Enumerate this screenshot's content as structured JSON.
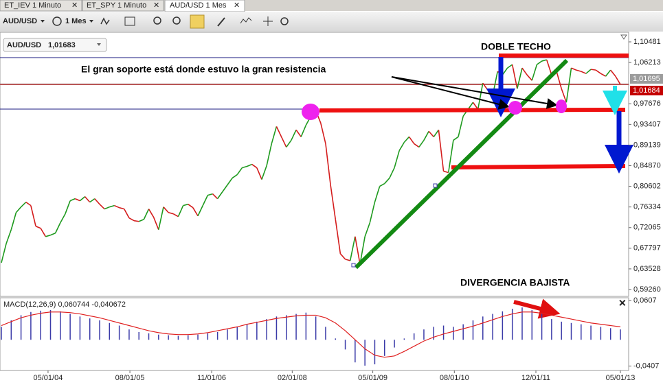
{
  "tabs": [
    "ET_IEV 1 Minuto",
    "ET_SPY 1 Minuto",
    "AUD/USD 1 Mes"
  ],
  "toolbar": {
    "symbol": "AUD/USD",
    "period": "1 Mes"
  },
  "symbol_box": {
    "symbol": "AUD/USD",
    "price": "1,01683"
  },
  "chart_data": [
    {
      "type": "line",
      "annotations": [
        "DOBLE TECHO",
        "El gran soporte está donde estuvo la gran resistencia",
        "DIVERGENCIA BAJISTA"
      ],
      "up_color": "#1e9a1e",
      "down_color": "#d41c1c",
      "values": [
        0.6481,
        0.6879,
        0.7164,
        0.7519,
        0.7633,
        0.7733,
        0.7662,
        0.7235,
        0.7192,
        0.7021,
        0.705,
        0.7093,
        0.7306,
        0.7491,
        0.7761,
        0.7804,
        0.7761,
        0.7847,
        0.7733,
        0.7804,
        0.769,
        0.7591,
        0.7633,
        0.7662,
        0.7619,
        0.7591,
        0.7406,
        0.7349,
        0.7334,
        0.7377,
        0.7591,
        0.742,
        0.7164,
        0.7633,
        0.7519,
        0.7491,
        0.7434,
        0.7662,
        0.769,
        0.7619,
        0.7448,
        0.7662,
        0.7875,
        0.7904,
        0.7804,
        0.7946,
        0.8088,
        0.8231,
        0.8302,
        0.8444,
        0.8473,
        0.8515,
        0.8444,
        0.8202,
        0.8487,
        0.8942,
        0.9298,
        0.9084,
        0.8871,
        0.9013,
        0.9227,
        0.9084,
        0.9326,
        0.9511,
        0.9625,
        0.9369,
        0.8942,
        0.8088,
        0.7377,
        0.6666,
        0.6552,
        0.6523,
        0.7021,
        0.6452,
        0.7021,
        0.7306,
        0.7733,
        0.806,
        0.8117,
        0.8231,
        0.8444,
        0.88,
        0.8971,
        0.9084,
        0.8942,
        0.8871,
        0.9013,
        0.9198,
        0.9084,
        0.9227,
        0.8373,
        0.8345,
        0.9013,
        0.9084,
        0.9511,
        0.9654,
        0.9796,
        0.9654,
        1.0194,
        1.0052,
        0.9938,
        1.0436,
        1.0365,
        1.0507,
        1.0578,
        1.008,
        1.0507,
        1.0365,
        1.0251,
        1.0578,
        1.065,
        1.0678,
        1.0365,
        1.0436,
        1.008,
        0.9796,
        1.0507,
        1.0465,
        1.0436,
        1.0393,
        1.0479,
        1.0465,
        1.0393,
        1.0337,
        1.0465,
        1.0337,
        1.0168
      ],
      "xlim": [
        0,
        126
      ],
      "ylim": [
        0.5784,
        1.1247
      ],
      "yticks": [
        {
          "value": 1.10481,
          "label": "1,10481"
        },
        {
          "value": 1.06213,
          "label": "1,06213"
        },
        {
          "value": 0.97676,
          "label": "0,97676"
        },
        {
          "value": 0.93407,
          "label": "0,93407"
        },
        {
          "value": 0.89139,
          "label": "0,89139"
        },
        {
          "value": 0.8487,
          "label": "0,84870"
        },
        {
          "value": 0.80602,
          "label": "0,80602"
        },
        {
          "value": 0.76334,
          "label": "0,76334"
        },
        {
          "value": 0.72065,
          "label": "0,72065"
        },
        {
          "value": 0.67797,
          "label": "0,67797"
        },
        {
          "value": 0.63528,
          "label": "0,63528"
        },
        {
          "value": 0.5926,
          "label": "0,59260"
        }
      ],
      "price_labels": [
        {
          "value": 1.01695,
          "label": "1,01695",
          "color": "#9c9c9c"
        },
        {
          "value": 1.01684,
          "label": "1,01684",
          "color": "#c40000"
        }
      ]
    },
    {
      "type": "macd",
      "title": "MACD(12,26,9) 0,060744 -0,040672",
      "histogram": {
        "color": "#3a3aa8",
        "values": [
          0.02,
          0.03,
          0.038,
          0.043,
          0.045,
          0.046,
          0.044,
          0.04,
          0.036,
          0.033,
          0.03,
          0.026,
          0.022,
          0.016,
          0.012,
          0.01,
          0.008,
          0.007,
          0.006,
          0.007,
          0.008,
          0.01,
          0.012,
          0.016,
          0.02,
          0.024,
          0.028,
          0.032,
          0.036,
          0.038,
          0.04,
          0.042,
          0.036,
          0.02,
          0.002,
          -0.015,
          -0.035,
          -0.04,
          -0.038,
          -0.025,
          -0.012,
          0.002,
          0.01,
          0.016,
          0.02,
          0.022,
          0.02,
          0.024,
          0.03,
          0.036,
          0.04,
          0.044,
          0.048,
          0.05,
          0.046,
          0.04,
          0.032,
          0.028,
          0.026,
          0.024,
          0.022,
          0.02,
          0.018,
          0.016
        ]
      },
      "signal": {
        "color": "#e02020",
        "values": [
          0.022,
          0.028,
          0.034,
          0.038,
          0.041,
          0.043,
          0.043,
          0.042,
          0.04,
          0.037,
          0.034,
          0.03,
          0.026,
          0.022,
          0.018,
          0.014,
          0.011,
          0.009,
          0.008,
          0.008,
          0.009,
          0.011,
          0.014,
          0.017,
          0.02,
          0.024,
          0.027,
          0.03,
          0.033,
          0.035,
          0.037,
          0.038,
          0.038,
          0.034,
          0.026,
          0.014,
          0.0,
          -0.014,
          -0.024,
          -0.027,
          -0.025,
          -0.018,
          -0.01,
          -0.002,
          0.004,
          0.009,
          0.013,
          0.017,
          0.021,
          0.026,
          0.031,
          0.036,
          0.04,
          0.043,
          0.043,
          0.041,
          0.038,
          0.035,
          0.032,
          0.029,
          0.026,
          0.024,
          0.022,
          0.02
        ]
      },
      "xlim": [
        0,
        63
      ],
      "ylim": [
        -0.0475,
        0.065
      ],
      "yticks": [
        {
          "value": 0.0607,
          "label": "0,0607"
        },
        {
          "value": -0.0407,
          "label": "-0,0407"
        }
      ],
      "xticks": [
        {
          "value": 4.75,
          "label": "05/01/04"
        },
        {
          "value": 13.08,
          "label": "08/01/05"
        },
        {
          "value": 21.4,
          "label": "11/01/06"
        },
        {
          "value": 29.6,
          "label": "02/01/08"
        },
        {
          "value": 37.8,
          "label": "05/01/09"
        },
        {
          "value": 46.1,
          "label": "08/01/10"
        },
        {
          "value": 54.4,
          "label": "12/01/11"
        },
        {
          "value": 63,
          "label": "05/01/13"
        }
      ]
    }
  ]
}
